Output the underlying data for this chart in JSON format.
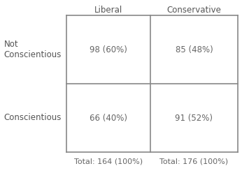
{
  "col_headers": [
    "Liberal",
    "Conservative"
  ],
  "row_headers": [
    "Not\nConscientious",
    "Conscientious"
  ],
  "cell_values": [
    [
      "98 (60%)",
      "85 (48%)"
    ],
    [
      "66 (40%)",
      "91 (52%)"
    ]
  ],
  "col_totals": [
    "Total: 164 (100%)",
    "Total: 176 (100%)"
  ],
  "grid_color": "#888888",
  "text_color": "#666666",
  "header_color": "#555555",
  "bg_color": "#ffffff",
  "cell_fontsize": 8.5,
  "header_fontsize": 8.5,
  "total_fontsize": 8.0
}
